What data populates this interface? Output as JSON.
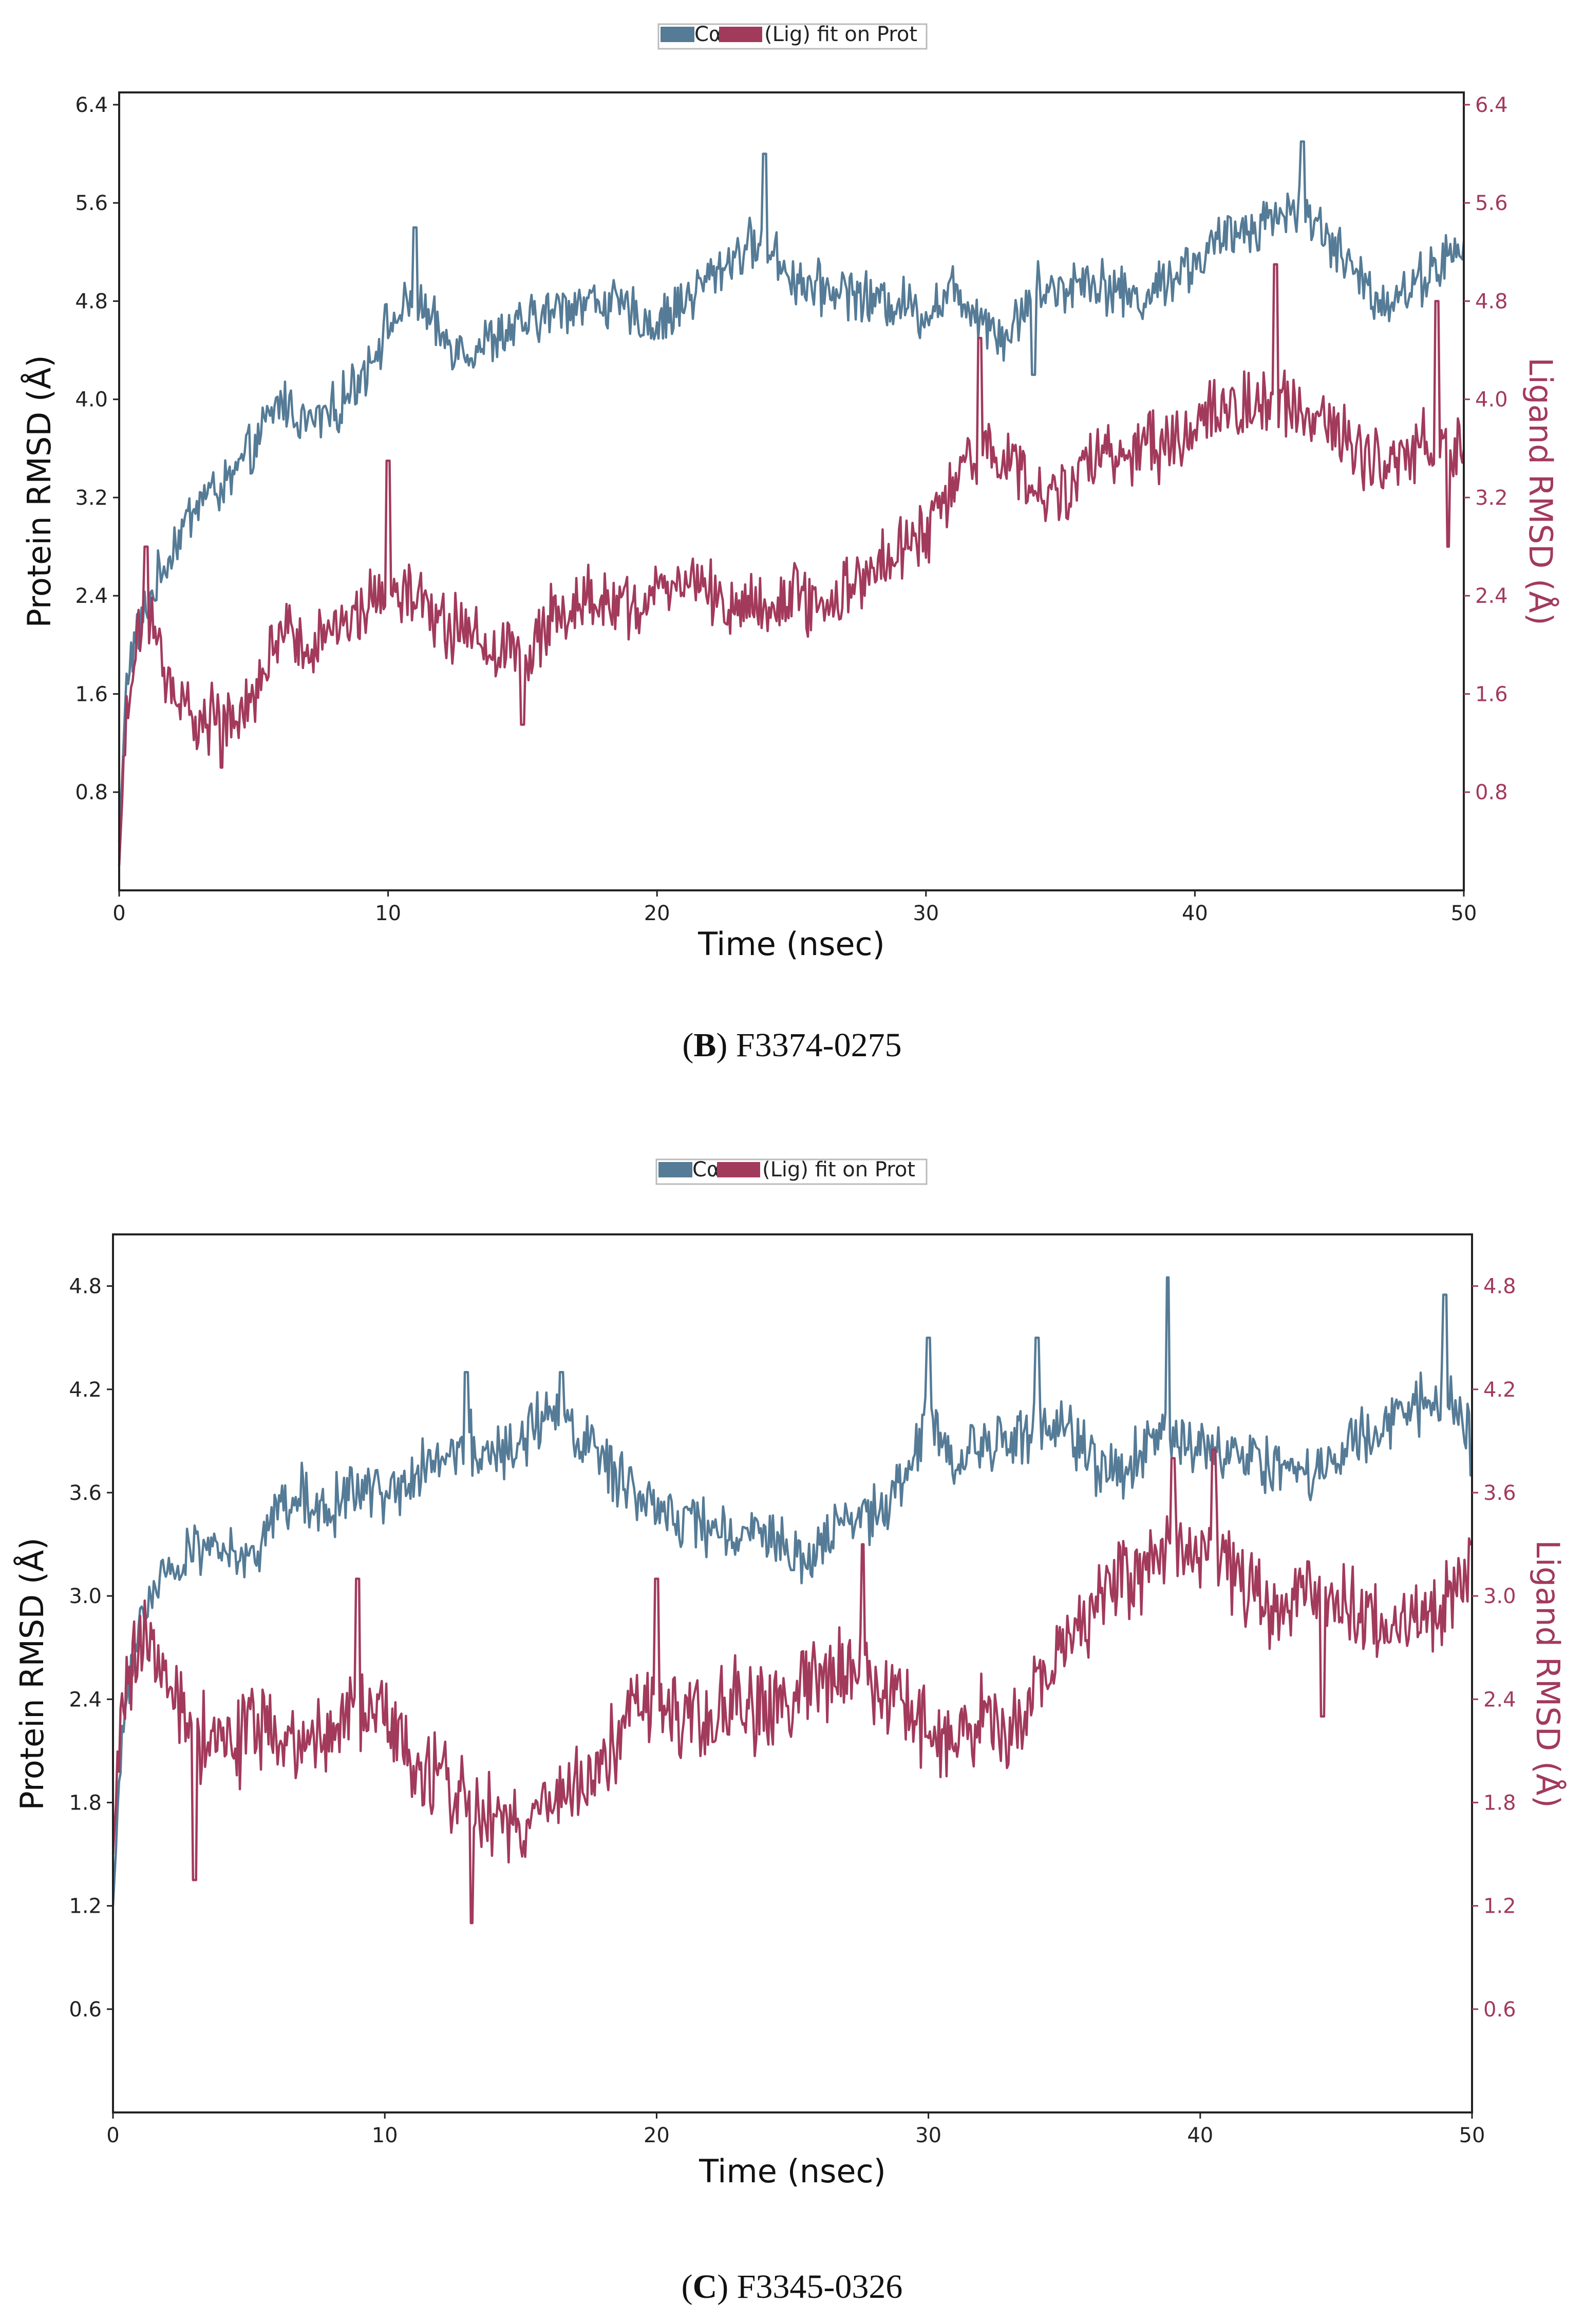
{
  "chart_data": [
    {
      "type": "line",
      "caption_letter": "B",
      "caption_text": "F3374-0275",
      "legend": {
        "protein_label": "Cα",
        "ligand_label": "(Lig) fit on Prot"
      },
      "xlabel": "Time (nsec)",
      "ylabel_left": "Protein RMSD (Å)",
      "ylabel_right": "Ligand RMSD (Å)",
      "xlim": [
        0,
        50
      ],
      "ylim": [
        0.0,
        6.5
      ],
      "xticks": [
        0,
        10,
        20,
        30,
        40,
        50
      ],
      "yticks": [
        0.8,
        1.6,
        2.4,
        3.2,
        4.0,
        4.8,
        5.6,
        6.4
      ],
      "series": [
        {
          "name": "Protein Cα RMSD",
          "axis": "left",
          "color": "#557b96",
          "noise": 0.17,
          "x": [
            0,
            0.3,
            1,
            2,
            3,
            4,
            5,
            6,
            7,
            8,
            9,
            10,
            11,
            12,
            13,
            14,
            15,
            16,
            17,
            18,
            19,
            20,
            21,
            22,
            23,
            24,
            25,
            26,
            27,
            28,
            29,
            30,
            31,
            32,
            33,
            34,
            35,
            36,
            37,
            38,
            39,
            40,
            41,
            42,
            43,
            44,
            45,
            46,
            47,
            48,
            49,
            50
          ],
          "y": [
            0.4,
            1.8,
            2.3,
            2.8,
            3.2,
            3.3,
            3.6,
            4.0,
            3.8,
            3.9,
            4.2,
            4.6,
            4.8,
            4.5,
            4.4,
            4.5,
            4.6,
            4.7,
            4.8,
            4.8,
            4.7,
            4.6,
            4.8,
            5.0,
            5.2,
            5.3,
            5.0,
            4.9,
            4.9,
            4.8,
            4.8,
            4.7,
            4.9,
            4.7,
            4.5,
            4.9,
            4.9,
            5.0,
            4.9,
            4.8,
            5.0,
            5.1,
            5.3,
            5.4,
            5.5,
            5.6,
            5.3,
            5.0,
            4.8,
            4.9,
            5.1,
            5.2
          ],
          "spikes": [
            [
              11,
              5.4
            ],
            [
              24,
              6.0
            ],
            [
              34,
              4.2
            ],
            [
              44,
              6.1
            ]
          ]
        },
        {
          "name": "Ligand RMSD (Lig fit on Prot)",
          "axis": "right",
          "color": "#a23a5c",
          "noise": 0.22,
          "x": [
            0,
            0.3,
            1,
            2,
            3,
            4,
            5,
            6,
            7,
            8,
            9,
            10,
            11,
            12,
            13,
            14,
            15,
            16,
            17,
            18,
            19,
            20,
            21,
            22,
            23,
            24,
            25,
            26,
            27,
            28,
            29,
            30,
            31,
            32,
            33,
            34,
            35,
            36,
            37,
            38,
            39,
            40,
            41,
            42,
            43,
            44,
            45,
            46,
            47,
            48,
            49,
            50
          ],
          "y": [
            0.2,
            1.6,
            2.3,
            1.6,
            1.4,
            1.35,
            1.6,
            2.2,
            1.9,
            2.1,
            2.2,
            2.5,
            2.4,
            2.2,
            2.1,
            2.0,
            1.9,
            2.2,
            2.3,
            2.4,
            2.3,
            2.4,
            2.5,
            2.4,
            2.3,
            2.3,
            2.4,
            2.3,
            2.4,
            2.6,
            2.8,
            2.9,
            3.3,
            3.6,
            3.5,
            3.3,
            3.2,
            3.5,
            3.5,
            3.6,
            3.6,
            3.8,
            3.9,
            4.0,
            4.0,
            3.9,
            3.8,
            3.6,
            3.4,
            3.5,
            3.7,
            3.5
          ],
          "spikes": [
            [
              1,
              2.8
            ],
            [
              3.8,
              1.0
            ],
            [
              10,
              3.5
            ],
            [
              15,
              1.35
            ],
            [
              32,
              4.5
            ],
            [
              43,
              5.1
            ],
            [
              49,
              4.8
            ],
            [
              49.4,
              2.8
            ]
          ]
        }
      ]
    },
    {
      "type": "line",
      "caption_letter": "C",
      "caption_text": "F3345-0326",
      "legend": {
        "protein_label": "Cα",
        "ligand_label": "(Lig) fit on Prot"
      },
      "xlabel": "Time (nsec)",
      "ylabel_left": "Protein RMSD (Å)",
      "ylabel_right": "Ligand RMSD (Å)",
      "xlim": [
        0,
        50
      ],
      "ylim": [
        0.0,
        5.1
      ],
      "xticks": [
        0,
        10,
        20,
        30,
        40,
        50
      ],
      "yticks": [
        0.6,
        1.2,
        1.8,
        2.4,
        3.0,
        3.6,
        4.2,
        4.8
      ],
      "series": [
        {
          "name": "Protein Cα RMSD",
          "axis": "left",
          "color": "#557b96",
          "noise": 0.14,
          "x": [
            0,
            0.3,
            1,
            2,
            3,
            4,
            5,
            6,
            7,
            8,
            9,
            10,
            11,
            12,
            13,
            14,
            15,
            16,
            17,
            18,
            19,
            20,
            21,
            22,
            23,
            24,
            25,
            26,
            27,
            28,
            29,
            30,
            31,
            32,
            33,
            34,
            35,
            36,
            37,
            38,
            39,
            40,
            41,
            42,
            43,
            44,
            45,
            46,
            47,
            48,
            49,
            50
          ],
          "y": [
            1.2,
            2.1,
            2.9,
            3.1,
            3.3,
            3.3,
            3.2,
            3.5,
            3.6,
            3.5,
            3.6,
            3.6,
            3.7,
            3.8,
            3.9,
            3.8,
            3.9,
            4.1,
            4.0,
            3.8,
            3.6,
            3.5,
            3.4,
            3.4,
            3.3,
            3.4,
            3.2,
            3.3,
            3.4,
            3.5,
            3.6,
            4.1,
            3.8,
            3.9,
            3.9,
            4.0,
            4.0,
            3.8,
            3.7,
            3.9,
            3.9,
            3.9,
            3.8,
            3.8,
            3.7,
            3.7,
            3.8,
            3.9,
            4.0,
            4.1,
            4.2,
            3.9
          ],
          "spikes": [
            [
              13,
              4.3
            ],
            [
              16.5,
              4.3
            ],
            [
              25,
              3.15
            ],
            [
              30,
              4.5
            ],
            [
              34,
              4.5
            ],
            [
              38.8,
              4.85
            ],
            [
              49,
              4.75
            ],
            [
              50,
              3.7
            ]
          ]
        },
        {
          "name": "Ligand RMSD (Lig fit on Prot)",
          "axis": "right",
          "color": "#a23a5c",
          "noise": 0.2,
          "x": [
            0,
            0.3,
            1,
            2,
            3,
            4,
            5,
            6,
            7,
            8,
            9,
            10,
            11,
            12,
            13,
            14,
            15,
            16,
            17,
            18,
            19,
            20,
            21,
            22,
            23,
            24,
            25,
            26,
            27,
            28,
            29,
            30,
            31,
            32,
            33,
            34,
            35,
            36,
            37,
            38,
            39,
            40,
            41,
            42,
            43,
            44,
            45,
            46,
            47,
            48,
            49,
            50
          ],
          "y": [
            1.5,
            2.3,
            2.8,
            2.5,
            2.2,
            2.1,
            2.2,
            2.2,
            2.1,
            2.2,
            2.3,
            2.3,
            2.1,
            1.9,
            1.8,
            1.7,
            1.7,
            1.8,
            1.9,
            2.0,
            2.3,
            2.4,
            2.3,
            2.3,
            2.4,
            2.3,
            2.4,
            2.5,
            2.6,
            2.5,
            2.4,
            2.2,
            2.2,
            2.3,
            2.2,
            2.5,
            2.7,
            2.9,
            3.1,
            3.2,
            3.3,
            3.3,
            3.2,
            3.0,
            2.9,
            3.0,
            3.0,
            2.9,
            2.8,
            2.9,
            3.0,
            3.1
          ],
          "spikes": [
            [
              3,
              1.35
            ],
            [
              9,
              3.1
            ],
            [
              13.2,
              1.1
            ],
            [
              20,
              3.1
            ],
            [
              27.6,
              3.3
            ],
            [
              39,
              3.8
            ],
            [
              40.5,
              3.85
            ],
            [
              44.5,
              2.3
            ],
            [
              50,
              3.3
            ]
          ]
        }
      ]
    }
  ],
  "colors": {
    "protein": "#557b96",
    "ligand": "#a23a5c",
    "axis": "#222222"
  }
}
